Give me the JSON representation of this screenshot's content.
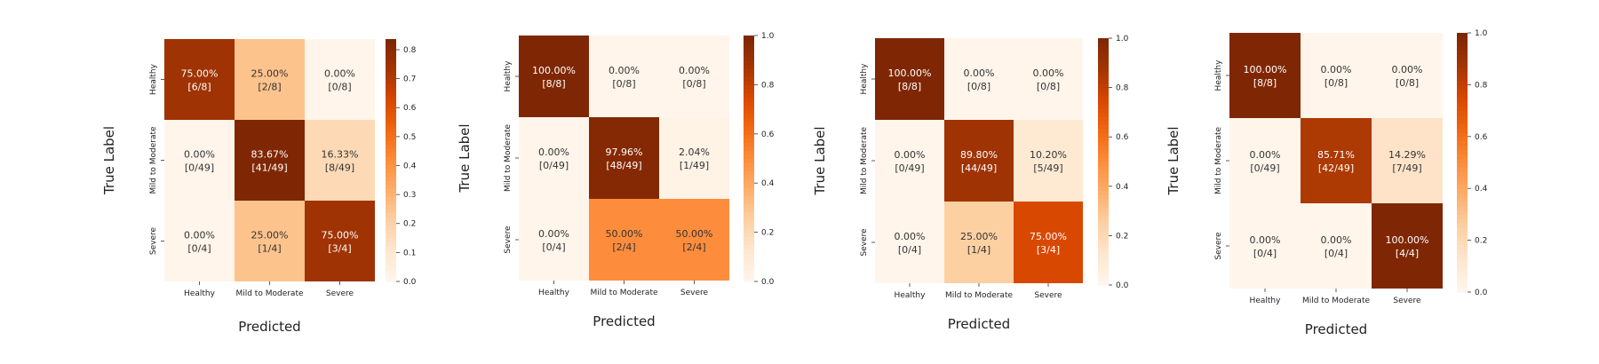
{
  "chart_data": [
    {
      "type": "heatmap",
      "xlabel": "Predicted",
      "ylabel": "True Label",
      "categories": [
        "Healthy",
        "Mild to Moderate",
        "Severe"
      ],
      "cells": [
        [
          {
            "pct": "75.00%",
            "count": "[6/8]",
            "value": 0.75
          },
          {
            "pct": "25.00%",
            "count": "[2/8]",
            "value": 0.25
          },
          {
            "pct": "0.00%",
            "count": "[0/8]",
            "value": 0.0
          }
        ],
        [
          {
            "pct": "0.00%",
            "count": "[0/49]",
            "value": 0.0
          },
          {
            "pct": "83.67%",
            "count": "[41/49]",
            "value": 0.8367
          },
          {
            "pct": "16.33%",
            "count": "[8/49]",
            "value": 0.1633
          }
        ],
        [
          {
            "pct": "0.00%",
            "count": "[0/4]",
            "value": 0.0
          },
          {
            "pct": "25.00%",
            "count": "[1/4]",
            "value": 0.25
          },
          {
            "pct": "75.00%",
            "count": "[3/4]",
            "value": 0.75
          }
        ]
      ],
      "colorbar": {
        "vmin": 0.0,
        "vmax": 0.8367,
        "ticks": [
          "0.0",
          "0.1",
          "0.2",
          "0.3",
          "0.4",
          "0.5",
          "0.6",
          "0.7",
          "0.8"
        ],
        "tick_values": [
          0.0,
          0.1,
          0.2,
          0.3,
          0.4,
          0.5,
          0.6,
          0.7,
          0.8
        ]
      }
    },
    {
      "type": "heatmap",
      "xlabel": "Predicted",
      "ylabel": "True Label",
      "categories": [
        "Healthy",
        "Mild to Moderate",
        "Severe"
      ],
      "cells": [
        [
          {
            "pct": "100.00%",
            "count": "[8/8]",
            "value": 1.0
          },
          {
            "pct": "0.00%",
            "count": "[0/8]",
            "value": 0.0
          },
          {
            "pct": "0.00%",
            "count": "[0/8]",
            "value": 0.0
          }
        ],
        [
          {
            "pct": "0.00%",
            "count": "[0/49]",
            "value": 0.0
          },
          {
            "pct": "97.96%",
            "count": "[48/49]",
            "value": 0.9796
          },
          {
            "pct": "2.04%",
            "count": "[1/49]",
            "value": 0.0204
          }
        ],
        [
          {
            "pct": "0.00%",
            "count": "[0/4]",
            "value": 0.0
          },
          {
            "pct": "50.00%",
            "count": "[2/4]",
            "value": 0.5
          },
          {
            "pct": "50.00%",
            "count": "[2/4]",
            "value": 0.5
          }
        ]
      ],
      "colorbar": {
        "vmin": 0.0,
        "vmax": 1.0,
        "ticks": [
          "0.0",
          "0.2",
          "0.4",
          "0.6",
          "0.8",
          "1.0"
        ],
        "tick_values": [
          0.0,
          0.2,
          0.4,
          0.6,
          0.8,
          1.0
        ]
      }
    },
    {
      "type": "heatmap",
      "xlabel": "Predicted",
      "ylabel": "True Label",
      "categories": [
        "Healthy",
        "Mild to Moderate",
        "Severe"
      ],
      "cells": [
        [
          {
            "pct": "100.00%",
            "count": "[8/8]",
            "value": 1.0
          },
          {
            "pct": "0.00%",
            "count": "[0/8]",
            "value": 0.0
          },
          {
            "pct": "0.00%",
            "count": "[0/8]",
            "value": 0.0
          }
        ],
        [
          {
            "pct": "0.00%",
            "count": "[0/49]",
            "value": 0.0
          },
          {
            "pct": "89.80%",
            "count": "[44/49]",
            "value": 0.898
          },
          {
            "pct": "10.20%",
            "count": "[5/49]",
            "value": 0.102
          }
        ],
        [
          {
            "pct": "0.00%",
            "count": "[0/4]",
            "value": 0.0
          },
          {
            "pct": "25.00%",
            "count": "[1/4]",
            "value": 0.25
          },
          {
            "pct": "75.00%",
            "count": "[3/4]",
            "value": 0.75
          }
        ]
      ],
      "colorbar": {
        "vmin": 0.0,
        "vmax": 1.0,
        "ticks": [
          "0.0",
          "0.2",
          "0.4",
          "0.6",
          "0.8",
          "1.0"
        ],
        "tick_values": [
          0.0,
          0.2,
          0.4,
          0.6,
          0.8,
          1.0
        ]
      }
    },
    {
      "type": "heatmap",
      "xlabel": "Predicted",
      "ylabel": "True Label",
      "categories": [
        "Healthy",
        "Mild to Moderate",
        "Severe"
      ],
      "cells": [
        [
          {
            "pct": "100.00%",
            "count": "[8/8]",
            "value": 1.0
          },
          {
            "pct": "0.00%",
            "count": "[0/8]",
            "value": 0.0
          },
          {
            "pct": "0.00%",
            "count": "[0/8]",
            "value": 0.0
          }
        ],
        [
          {
            "pct": "0.00%",
            "count": "[0/49]",
            "value": 0.0
          },
          {
            "pct": "85.71%",
            "count": "[42/49]",
            "value": 0.8571
          },
          {
            "pct": "14.29%",
            "count": "[7/49]",
            "value": 0.1429
          }
        ],
        [
          {
            "pct": "0.00%",
            "count": "[0/4]",
            "value": 0.0
          },
          {
            "pct": "0.00%",
            "count": "[0/4]",
            "value": 0.0
          },
          {
            "pct": "100.00%",
            "count": "[4/4]",
            "value": 1.0
          }
        ]
      ],
      "colorbar": {
        "vmin": 0.0,
        "vmax": 1.0,
        "ticks": [
          "0.0",
          "0.2",
          "0.4",
          "0.6",
          "0.8",
          "1.0"
        ],
        "tick_values": [
          0.0,
          0.2,
          0.4,
          0.6,
          0.8,
          1.0
        ]
      }
    }
  ],
  "colormap": {
    "name": "Oranges",
    "stops": [
      "#fff5eb",
      "#fee6ce",
      "#fdd0a2",
      "#fdae6b",
      "#fd8d3c",
      "#f16913",
      "#d94801",
      "#a63603",
      "#7f2704"
    ]
  }
}
